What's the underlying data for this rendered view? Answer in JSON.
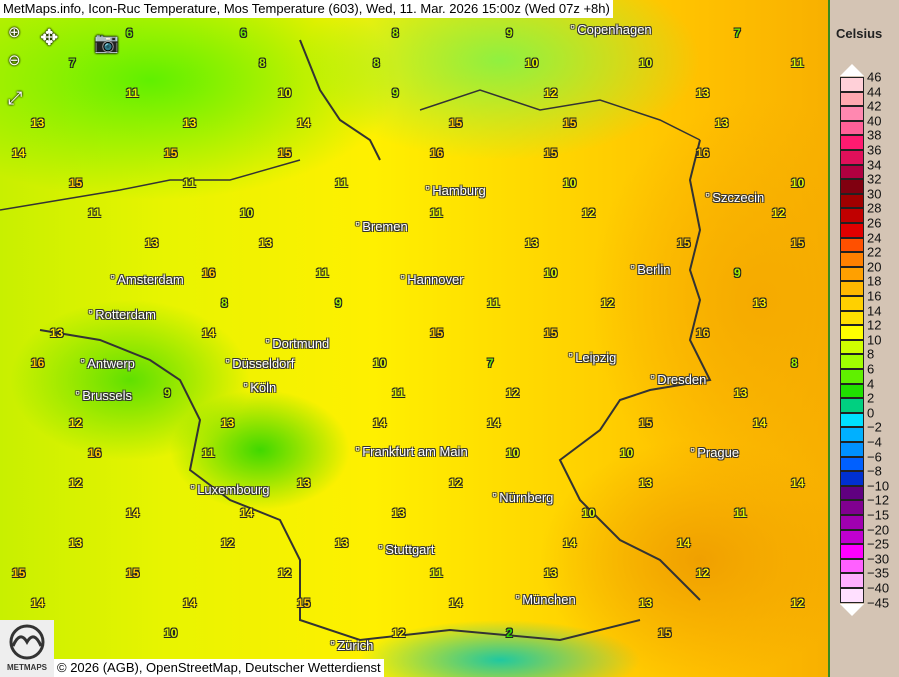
{
  "title": "MetMaps.info, Icon-Ruc Temperature, Mos Temperature (603), Wed, 11. Mar. 2026 15:00z (Wed 07z +8h)",
  "controls": {
    "zoom_in": "zoom-in-icon",
    "zoom_out": "zoom-out-icon",
    "pan": "pan-arrows-icon",
    "screenshot": "camera-icon",
    "fullscreen": "fullscreen-icon"
  },
  "copyright": "© 2026 (AGB), OpenStreetMap, Deutscher Wetterdienst",
  "logo_text": "METMAPS",
  "cities": [
    "Copenhagen",
    "Szczecin",
    "Hamburg",
    "Bremen",
    "Berlin",
    "Amsterdam",
    "Rotterdam",
    "Hannover",
    "Dortmund",
    "Düsseldorf",
    "Köln",
    "Antwerp",
    "Brussels",
    "Leipzig",
    "Dresden",
    "Frankfurt am Main",
    "Prague",
    "Luxembourg",
    "Nürnberg",
    "Stuttgart",
    "München",
    "Zürich"
  ],
  "stations": [
    6,
    6,
    8,
    9,
    7,
    7,
    8,
    8,
    10,
    10,
    11,
    11,
    10,
    9,
    12,
    13,
    13,
    13,
    14,
    15,
    15,
    13,
    14,
    15,
    15,
    16,
    15,
    16,
    15,
    11,
    11,
    10,
    10,
    11,
    10,
    11,
    12,
    12,
    13,
    13,
    13,
    15,
    15,
    16,
    11,
    10,
    9,
    8,
    9,
    11,
    12,
    13,
    13,
    14,
    15,
    15,
    16,
    16,
    10,
    7,
    8,
    9,
    11,
    12,
    13,
    12,
    13,
    14,
    14,
    15,
    14,
    16,
    11,
    10,
    10,
    12,
    13,
    12,
    13,
    14,
    14,
    14,
    13,
    10,
    11,
    13,
    12,
    13,
    14,
    14,
    15,
    15,
    12,
    11,
    13,
    12,
    14,
    14,
    15,
    14,
    13,
    12,
    10,
    12,
    2,
    15
  ],
  "legend": {
    "title": "Celsius",
    "labels": [
      "46",
      "44",
      "42",
      "40",
      "38",
      "36",
      "34",
      "32",
      "30",
      "28",
      "26",
      "24",
      "22",
      "20",
      "18",
      "16",
      "14",
      "12",
      "10",
      "8",
      "6",
      "4",
      "2",
      "0",
      "−2",
      "−4",
      "−6",
      "−8",
      "−10",
      "−12",
      "−15",
      "−20",
      "−25",
      "−30",
      "−35",
      "−40",
      "−45"
    ],
    "colors": [
      "#ffd0d8",
      "#ffa8b0",
      "#ff88b0",
      "#ff6098",
      "#ff1a70",
      "#e0105a",
      "#b00040",
      "#800010",
      "#a00000",
      "#c00000",
      "#e00000",
      "#ff5000",
      "#ff8000",
      "#ffa000",
      "#ffb800",
      "#ffd000",
      "#ffe000",
      "#ffff00",
      "#d0ff00",
      "#a0ff00",
      "#60f000",
      "#20e000",
      "#00d080",
      "#00e0ff",
      "#00b0ff",
      "#0090ff",
      "#0060ff",
      "#0030d0",
      "#600080",
      "#800090",
      "#a000b0",
      "#c000d0",
      "#ff00ff",
      "#ff60ff",
      "#ffb0ff",
      "#ffe0ff"
    ]
  }
}
